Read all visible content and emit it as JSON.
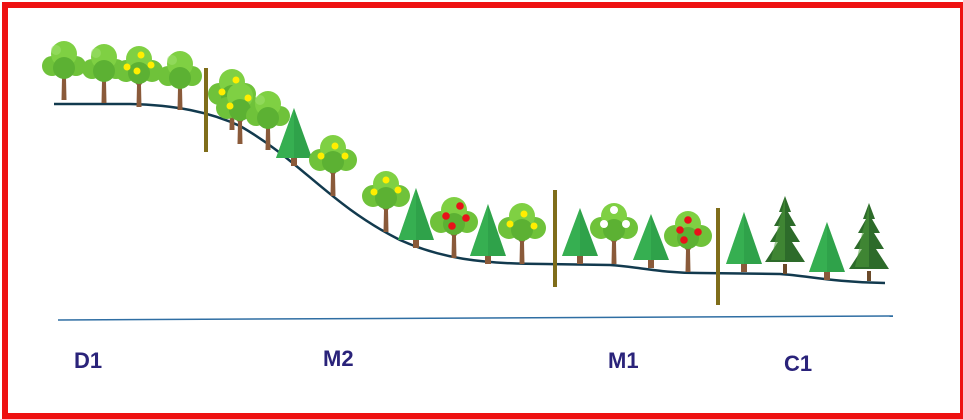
{
  "zones": [
    {
      "label": "D1"
    },
    {
      "label": "M2"
    },
    {
      "label": "M1"
    },
    {
      "label": "C1"
    }
  ],
  "colors": {
    "frame": "#ee1111",
    "ground_line": "#123a4e",
    "baseline": "#2f6ea3",
    "divider": "#7f6d1a",
    "label": "#2a237a",
    "leaf_light": "#6fc23a",
    "leaf_dark": "#3f9a2a",
    "trunk": "#8a5a3a",
    "fruit_yellow": "#ffee00",
    "fruit_red": "#e8121a",
    "fruit_white": "#ffffff",
    "cone_green": "#2fa24a",
    "fir_green": "#2d6b2a"
  },
  "tree_types": [
    "broadleaf",
    "broadleaf-yellow-fruit",
    "conifer",
    "broadleaf-red-fruit",
    "broadleaf-white-fruit",
    "fir"
  ]
}
